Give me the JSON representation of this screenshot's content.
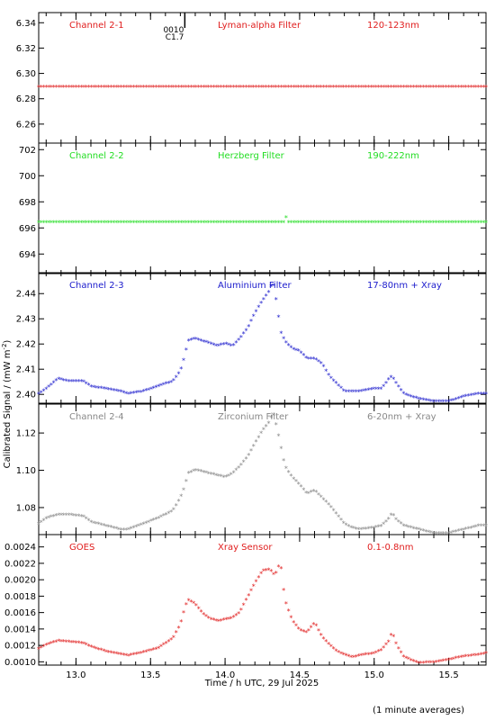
{
  "chart_data": [
    {
      "type": "scatter",
      "panel_id": "ch21",
      "labels": {
        "channel": "Channel 2-1",
        "filter": "Lyman-alpha Filter",
        "band": "120-123nm"
      },
      "color": "#e01c1c",
      "ylim": [
        6.245,
        6.348
      ],
      "yticks": [
        6.26,
        6.28,
        6.3,
        6.32,
        6.34
      ],
      "ytick_labels": [
        "6.26",
        "6.28",
        "6.30",
        "6.32",
        "6.34"
      ],
      "series_points": [
        [
          12.75,
          6.289
        ],
        [
          15.75,
          6.289
        ]
      ],
      "flat": true,
      "annotation": {
        "x": 13.73,
        "lines": [
          "0010",
          "C1.7"
        ]
      }
    },
    {
      "type": "scatter",
      "panel_id": "ch22",
      "labels": {
        "channel": "Channel 2-2",
        "filter": "Herzberg Filter",
        "band": "190-222nm"
      },
      "color": "#22dd22",
      "ylim": [
        692.5,
        702.5
      ],
      "yticks": [
        694,
        696,
        698,
        700,
        702
      ],
      "ytick_labels": [
        "694",
        "696",
        "698",
        "700",
        "702"
      ],
      "series_points": [
        [
          12.75,
          696.4
        ],
        [
          14.4,
          696.4
        ],
        [
          14.41,
          696.8
        ],
        [
          14.42,
          696.4
        ],
        [
          15.75,
          696.4
        ]
      ],
      "flat": true
    },
    {
      "type": "scatter",
      "panel_id": "ch23",
      "labels": {
        "channel": "Channel 2-3",
        "filter": "Aluminium Filter",
        "band": "17-80nm + Xray"
      },
      "color": "#1a1acc",
      "ylim": [
        2.3965,
        2.4483
      ],
      "yticks": [
        2.4,
        2.41,
        2.42,
        2.43,
        2.44
      ],
      "ytick_labels": [
        "2.40",
        "2.41",
        "2.42",
        "2.43",
        "2.44"
      ],
      "series_points": [
        [
          12.75,
          2.4
        ],
        [
          12.8,
          2.402
        ],
        [
          12.88,
          2.406
        ],
        [
          12.95,
          2.405
        ],
        [
          13.05,
          2.405
        ],
        [
          13.1,
          2.403
        ],
        [
          13.2,
          2.402
        ],
        [
          13.3,
          2.401
        ],
        [
          13.35,
          2.4
        ],
        [
          13.45,
          2.401
        ],
        [
          13.55,
          2.403
        ],
        [
          13.65,
          2.405
        ],
        [
          13.7,
          2.409
        ],
        [
          13.73,
          2.415
        ],
        [
          13.75,
          2.421
        ],
        [
          13.8,
          2.422
        ],
        [
          13.85,
          2.421
        ],
        [
          13.9,
          2.42
        ],
        [
          13.95,
          2.419
        ],
        [
          14.0,
          2.42
        ],
        [
          14.05,
          2.419
        ],
        [
          14.1,
          2.422
        ],
        [
          14.15,
          2.426
        ],
        [
          14.2,
          2.432
        ],
        [
          14.25,
          2.437
        ],
        [
          14.3,
          2.441
        ],
        [
          14.32,
          2.445
        ],
        [
          14.35,
          2.435
        ],
        [
          14.37,
          2.425
        ],
        [
          14.4,
          2.421
        ],
        [
          14.45,
          2.418
        ],
        [
          14.5,
          2.417
        ],
        [
          14.55,
          2.414
        ],
        [
          14.6,
          2.414
        ],
        [
          14.65,
          2.412
        ],
        [
          14.7,
          2.407
        ],
        [
          14.75,
          2.404
        ],
        [
          14.8,
          2.401
        ],
        [
          14.85,
          2.401
        ],
        [
          14.9,
          2.401
        ],
        [
          15.0,
          2.402
        ],
        [
          15.05,
          2.402
        ],
        [
          15.1,
          2.406
        ],
        [
          15.12,
          2.407
        ],
        [
          15.15,
          2.404
        ],
        [
          15.2,
          2.4
        ],
        [
          15.3,
          2.398
        ],
        [
          15.4,
          2.397
        ],
        [
          15.5,
          2.397
        ],
        [
          15.6,
          2.399
        ],
        [
          15.7,
          2.4
        ],
        [
          15.75,
          2.4
        ]
      ]
    },
    {
      "type": "scatter",
      "panel_id": "ch24",
      "labels": {
        "channel": "Channel 2-4",
        "filter": "Zirconium Filter",
        "band": "6-20nm + Xray"
      },
      "color": "#888888",
      "ylim": [
        1.0655,
        1.1355
      ],
      "yticks": [
        1.08,
        1.1,
        1.12
      ],
      "ytick_labels": [
        "1.08",
        "1.10",
        "1.12"
      ],
      "series_points": [
        [
          12.75,
          1.071
        ],
        [
          12.8,
          1.074
        ],
        [
          12.88,
          1.076
        ],
        [
          12.95,
          1.076
        ],
        [
          13.05,
          1.075
        ],
        [
          13.1,
          1.072
        ],
        [
          13.2,
          1.07
        ],
        [
          13.3,
          1.068
        ],
        [
          13.35,
          1.068
        ],
        [
          13.45,
          1.071
        ],
        [
          13.55,
          1.074
        ],
        [
          13.65,
          1.078
        ],
        [
          13.7,
          1.085
        ],
        [
          13.73,
          1.091
        ],
        [
          13.75,
          1.098
        ],
        [
          13.8,
          1.1
        ],
        [
          13.85,
          1.099
        ],
        [
          13.9,
          1.098
        ],
        [
          13.95,
          1.097
        ],
        [
          14.0,
          1.096
        ],
        [
          14.05,
          1.098
        ],
        [
          14.1,
          1.102
        ],
        [
          14.15,
          1.107
        ],
        [
          14.2,
          1.114
        ],
        [
          14.25,
          1.121
        ],
        [
          14.3,
          1.126
        ],
        [
          14.32,
          1.131
        ],
        [
          14.35,
          1.122
        ],
        [
          14.38,
          1.11
        ],
        [
          14.4,
          1.102
        ],
        [
          14.45,
          1.096
        ],
        [
          14.5,
          1.092
        ],
        [
          14.55,
          1.087
        ],
        [
          14.6,
          1.089
        ],
        [
          14.65,
          1.085
        ],
        [
          14.7,
          1.081
        ],
        [
          14.75,
          1.076
        ],
        [
          14.8,
          1.071
        ],
        [
          14.85,
          1.069
        ],
        [
          14.9,
          1.068
        ],
        [
          15.0,
          1.069
        ],
        [
          15.05,
          1.07
        ],
        [
          15.1,
          1.074
        ],
        [
          15.12,
          1.077
        ],
        [
          15.15,
          1.073
        ],
        [
          15.2,
          1.07
        ],
        [
          15.3,
          1.068
        ],
        [
          15.4,
          1.066
        ],
        [
          15.5,
          1.066
        ],
        [
          15.6,
          1.068
        ],
        [
          15.7,
          1.07
        ],
        [
          15.75,
          1.07
        ]
      ]
    },
    {
      "type": "scatter",
      "panel_id": "goes",
      "labels": {
        "channel": "GOES",
        "filter": "Xray Sensor",
        "band": "0.1-0.8nm"
      },
      "color": "#e01c1c",
      "ylim": [
        0.00096,
        0.00255
      ],
      "yticks": [
        0.001,
        0.0012,
        0.0014,
        0.0016,
        0.0018,
        0.002,
        0.0022,
        0.0024
      ],
      "ytick_labels": [
        "0.0010",
        "0.0012",
        "0.0014",
        "0.0016",
        "0.0018",
        "0.0020",
        "0.0022",
        "0.0024"
      ],
      "series_points": [
        [
          12.75,
          0.00115
        ],
        [
          12.8,
          0.0012
        ],
        [
          12.88,
          0.00125
        ],
        [
          12.95,
          0.00124
        ],
        [
          13.05,
          0.00122
        ],
        [
          13.1,
          0.00118
        ],
        [
          13.2,
          0.00112
        ],
        [
          13.3,
          0.00109
        ],
        [
          13.35,
          0.00107
        ],
        [
          13.45,
          0.00111
        ],
        [
          13.55,
          0.00116
        ],
        [
          13.65,
          0.00128
        ],
        [
          13.7,
          0.00145
        ],
        [
          13.73,
          0.00165
        ],
        [
          13.75,
          0.00175
        ],
        [
          13.8,
          0.0017
        ],
        [
          13.85,
          0.00158
        ],
        [
          13.9,
          0.00152
        ],
        [
          13.95,
          0.00149
        ],
        [
          14.0,
          0.00151
        ],
        [
          14.05,
          0.00153
        ],
        [
          14.1,
          0.0016
        ],
        [
          14.15,
          0.00178
        ],
        [
          14.2,
          0.00195
        ],
        [
          14.25,
          0.0021
        ],
        [
          14.3,
          0.00212
        ],
        [
          14.33,
          0.00205
        ],
        [
          14.35,
          0.0021
        ],
        [
          14.37,
          0.00222
        ],
        [
          14.4,
          0.00175
        ],
        [
          14.45,
          0.0015
        ],
        [
          14.5,
          0.00138
        ],
        [
          14.55,
          0.00135
        ],
        [
          14.6,
          0.00147
        ],
        [
          14.65,
          0.0013
        ],
        [
          14.7,
          0.0012
        ],
        [
          14.75,
          0.00112
        ],
        [
          14.8,
          0.00108
        ],
        [
          14.85,
          0.00105
        ],
        [
          14.9,
          0.00107
        ],
        [
          15.0,
          0.0011
        ],
        [
          15.05,
          0.00114
        ],
        [
          15.1,
          0.00125
        ],
        [
          15.12,
          0.00136
        ],
        [
          15.15,
          0.0012
        ],
        [
          15.2,
          0.00105
        ],
        [
          15.3,
          0.00098
        ],
        [
          15.4,
          0.00099
        ],
        [
          15.5,
          0.00102
        ],
        [
          15.6,
          0.00106
        ],
        [
          15.7,
          0.00108
        ],
        [
          15.75,
          0.0011
        ]
      ]
    }
  ],
  "shared_axis": {
    "xlim": [
      12.75,
      15.75
    ],
    "xticks": [
      13.0,
      13.5,
      14.0,
      14.5,
      15.0,
      15.5
    ],
    "xtick_labels": [
      "13.0",
      "13.5",
      "14.0",
      "14.5",
      "15.0",
      "15.5"
    ],
    "xlabel": "Time / h UTC, 29 Jul 2025",
    "ylabel": "Calibrated Signal / (mW m",
    "ylabel_sup": "-2",
    "ylabel_end": ")",
    "footnote": "(1 minute averages)"
  }
}
